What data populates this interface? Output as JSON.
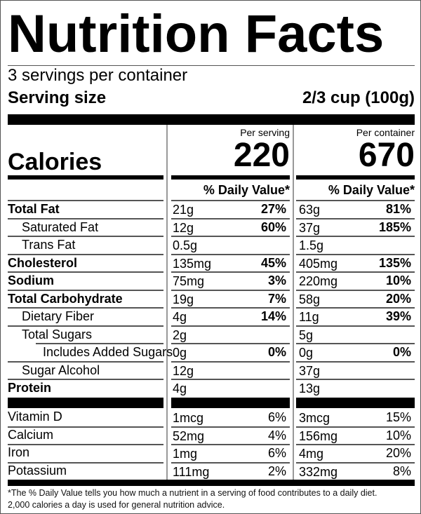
{
  "header": {
    "title": "Nutrition Facts",
    "servings_per_container": "3 servings per container",
    "serving_size_label": "Serving size",
    "serving_size_value": "2/3 cup (100g)"
  },
  "columns": {
    "per_serving_label": "Per serving",
    "per_container_label": "Per container",
    "daily_value_label": "% Daily Value*"
  },
  "calories": {
    "label": "Calories",
    "per_serving": "220",
    "per_container": "670"
  },
  "nutrients": [
    {
      "name": "Total Fat",
      "bold": true,
      "indent": 0,
      "serving_amount": "21g",
      "serving_dv": "27%",
      "container_amount": "63g",
      "container_dv": "81%"
    },
    {
      "name": "Saturated Fat",
      "bold": false,
      "indent": 1,
      "serving_amount": "12g",
      "serving_dv": "60%",
      "container_amount": "37g",
      "container_dv": "185%"
    },
    {
      "name": "Trans Fat",
      "bold": false,
      "indent": 1,
      "serving_amount": "0.5g",
      "serving_dv": "",
      "container_amount": "1.5g",
      "container_dv": ""
    },
    {
      "name": "Cholesterol",
      "bold": true,
      "indent": 0,
      "serving_amount": "135mg",
      "serving_dv": "45%",
      "container_amount": "405mg",
      "container_dv": "135%"
    },
    {
      "name": "Sodium",
      "bold": true,
      "indent": 0,
      "serving_amount": "75mg",
      "serving_dv": "3%",
      "container_amount": "220mg",
      "container_dv": "10%"
    },
    {
      "name": "Total Carbohydrate",
      "bold": true,
      "indent": 0,
      "serving_amount": "19g",
      "serving_dv": "7%",
      "container_amount": "58g",
      "container_dv": "20%"
    },
    {
      "name": "Dietary Fiber",
      "bold": false,
      "indent": 1,
      "serving_amount": "4g",
      "serving_dv": "14%",
      "container_amount": "11g",
      "container_dv": "39%"
    },
    {
      "name": "Total Sugars",
      "bold": false,
      "indent": 1,
      "serving_amount": "2g",
      "serving_dv": "",
      "container_amount": "5g",
      "container_dv": ""
    },
    {
      "name": "Includes Added Sugars",
      "bold": false,
      "indent": 2,
      "serving_amount": "0g",
      "serving_dv": "0%",
      "container_amount": "0g",
      "container_dv": "0%"
    },
    {
      "name": "Sugar Alcohol",
      "bold": false,
      "indent": 1,
      "serving_amount": "12g",
      "serving_dv": "",
      "container_amount": "37g",
      "container_dv": ""
    },
    {
      "name": "Protein",
      "bold": true,
      "indent": 0,
      "serving_amount": "4g",
      "serving_dv": "",
      "container_amount": "13g",
      "container_dv": ""
    }
  ],
  "vitamins": [
    {
      "name": "Vitamin D",
      "serving_amount": "1mcg",
      "serving_dv": "6%",
      "container_amount": "3mcg",
      "container_dv": "15%"
    },
    {
      "name": "Calcium",
      "serving_amount": "52mg",
      "serving_dv": "4%",
      "container_amount": "156mg",
      "container_dv": "10%"
    },
    {
      "name": "Iron",
      "serving_amount": "1mg",
      "serving_dv": "6%",
      "container_amount": "4mg",
      "container_dv": "20%"
    },
    {
      "name": "Potassium",
      "serving_amount": "111mg",
      "serving_dv": "2%",
      "container_amount": "332mg",
      "container_dv": "8%"
    }
  ],
  "footnote": {
    "line1": "*The % Daily Value tells you how much a nutrient in a serving of food contributes to a daily diet.",
    "line2": "2,000 calories a day is used for general nutrition advice."
  }
}
